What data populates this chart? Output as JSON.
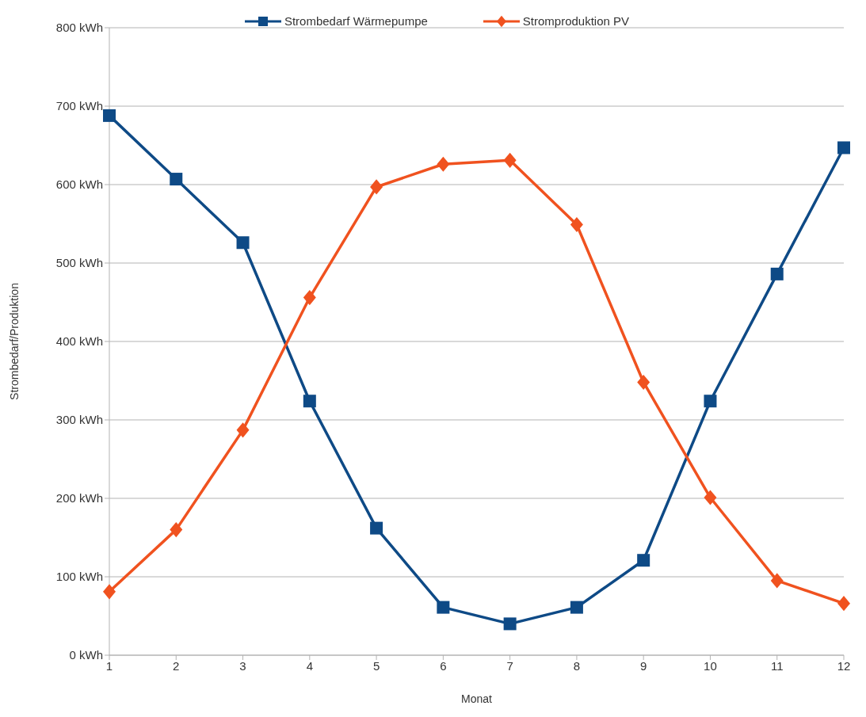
{
  "chart_data": {
    "type": "line",
    "xlabel": "Monat",
    "ylabel": "Strombedarf/Produktion",
    "x": [
      1,
      2,
      3,
      4,
      5,
      6,
      7,
      8,
      9,
      10,
      11,
      12
    ],
    "xlim": [
      1,
      12
    ],
    "xticks": [
      1,
      2,
      3,
      4,
      5,
      6,
      7,
      8,
      9,
      10,
      11,
      12
    ],
    "ylim": [
      0,
      800
    ],
    "yticks": [
      {
        "value": 0,
        "label": "0 kWh"
      },
      {
        "value": 100,
        "label": "100 kWh"
      },
      {
        "value": 200,
        "label": "200 kWh"
      },
      {
        "value": 300,
        "label": "300 kWh"
      },
      {
        "value": 400,
        "label": "400 kWh"
      },
      {
        "value": 500,
        "label": "500 kWh"
      },
      {
        "value": 600,
        "label": "600 kWh"
      },
      {
        "value": 700,
        "label": "700 kWh"
      },
      {
        "value": 800,
        "label": "800 kWh"
      }
    ],
    "grid": "y",
    "legend": "top",
    "line_style": "solid",
    "series": [
      {
        "name": "Strombedarf Wärmepumpe",
        "color": "#0e4a86",
        "marker": "square",
        "values": [
          688,
          607,
          526,
          324,
          162,
          61,
          40,
          61,
          121,
          324,
          486,
          647
        ]
      },
      {
        "name": "Stromproduktion PV",
        "color": "#f0521f",
        "marker": "diamond",
        "values": [
          81,
          160,
          287,
          456,
          597,
          626,
          631,
          549,
          348,
          201,
          95,
          66
        ]
      }
    ]
  }
}
